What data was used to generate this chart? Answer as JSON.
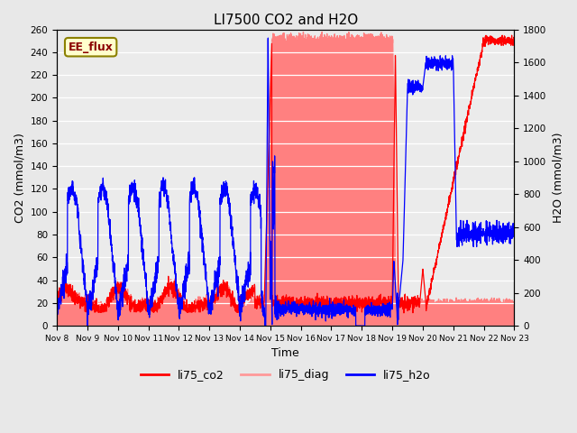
{
  "title": "LI7500 CO2 and H2O",
  "xlabel": "Time",
  "ylabel_left": "CO2 (mmol/m3)",
  "ylabel_right": "H2O (mmol/m3)",
  "annotation": "EE_flux",
  "annotation_color": "#8B0000",
  "annotation_bg": "#FFFFCC",
  "annotation_edge": "#8B8000",
  "ylim_left": [
    0,
    260
  ],
  "ylim_right": [
    0,
    1800
  ],
  "yticks_left": [
    0,
    20,
    40,
    60,
    80,
    100,
    120,
    140,
    160,
    180,
    200,
    220,
    240,
    260
  ],
  "yticks_right": [
    0,
    200,
    400,
    600,
    800,
    1000,
    1200,
    1400,
    1600,
    1800
  ],
  "xtick_labels": [
    "Nov 8",
    "Nov 9",
    "Nov 10",
    "Nov 11",
    "Nov 12",
    "Nov 13",
    "Nov 14",
    "Nov 15",
    "Nov 16",
    "Nov 17",
    "Nov 18",
    "Nov 19",
    "Nov 20",
    "Nov 21",
    "Nov 22",
    "Nov 23"
  ],
  "bg_color": "#E8E8E8",
  "plot_bg_color": "#EBEBEB",
  "legend_entries": [
    "li75_co2",
    "li75_diag",
    "li75_h2o"
  ],
  "legend_colors": [
    "#FF0000",
    "#FF9999",
    "#0000FF"
  ],
  "co2_color": "#FF0000",
  "diag_color": "#FF8080",
  "h2o_color": "#0000FF",
  "n_points": 3000,
  "days": 15
}
